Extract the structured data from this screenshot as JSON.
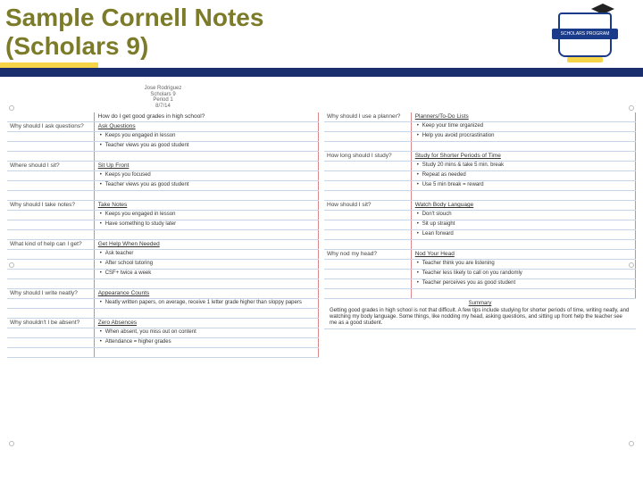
{
  "title_line1": "Sample Cornell Notes",
  "title_line2": "(Scholars 9)",
  "logo_text": "SCHOLARS PROGRAM",
  "header_name": "Jose Rodriguez",
  "header_class": "Scholars 9",
  "header_period": "Period 1",
  "header_date": "8/7/14",
  "page1": {
    "main_q": "How do I get good grades in high school?",
    "sections": [
      {
        "cue": "Why should I ask questions?",
        "title": "Ask Questions",
        "bullets": [
          "Keeps you engaged in lesson",
          "Teacher views you as good student"
        ]
      },
      {
        "cue": "Where should I sit?",
        "title": "Sit Up Front",
        "bullets": [
          "Keeps you focused",
          "Teacher views you as good student"
        ]
      },
      {
        "cue": "Why should I take notes?",
        "title": "Take Notes",
        "bullets": [
          "Keeps you engaged in lesson",
          "Have something to study later"
        ]
      },
      {
        "cue": "What kind of help can I get?",
        "title": "Get Help When Needed",
        "bullets": [
          "Ask teacher",
          "After school tutoring",
          "CSF+ twice a week"
        ]
      },
      {
        "cue": "Why should I write neatly?",
        "title": "Appearance Counts",
        "bullets": [
          "Neatly written papers, on average, receive 1 letter grade higher than sloppy papers"
        ]
      },
      {
        "cue": "Why shouldn't I be absent?",
        "title": "Zero Absences",
        "bullets": [
          "When absent, you miss out on content",
          "Attendance = higher grades"
        ]
      }
    ]
  },
  "page2": {
    "sections": [
      {
        "cue": "Why should I use a planner?",
        "title": "Planners/To-Do Lists",
        "bullets": [
          "Keep your time organized",
          "Help you avoid procrastination"
        ]
      },
      {
        "cue": "How long should I study?",
        "title": "Study for Shorter Periods of Time",
        "bullets": [
          "Study 20 mins & take 5 min. break",
          "Repeat as needed",
          "Use 5 min break = reward"
        ]
      },
      {
        "cue": "How should I sit?",
        "title": "Watch Body Language",
        "bullets": [
          "Don't slouch",
          "Sit up straight",
          "Lean forward"
        ]
      },
      {
        "cue": "Why nod my head?",
        "title": "Nod Your Head",
        "bullets": [
          "Teacher think you are listening",
          "Teacher less likely to call on you randomly",
          "Teacher perceives you as good student"
        ]
      }
    ],
    "summary_title": "Summary",
    "summary_text": "Getting good grades in high school is not that difficult. A few tips include studying for shorter periods of time, writing neatly, and watching my body language. Some things, like nodding my head, asking questions, and sitting up front help the teacher see me as a good student."
  },
  "colors": {
    "title": "#7b7b29",
    "blue": "#1a2e6e",
    "yellow": "#f5d547",
    "rule": "#c8d4e8",
    "margin": "#d88"
  }
}
